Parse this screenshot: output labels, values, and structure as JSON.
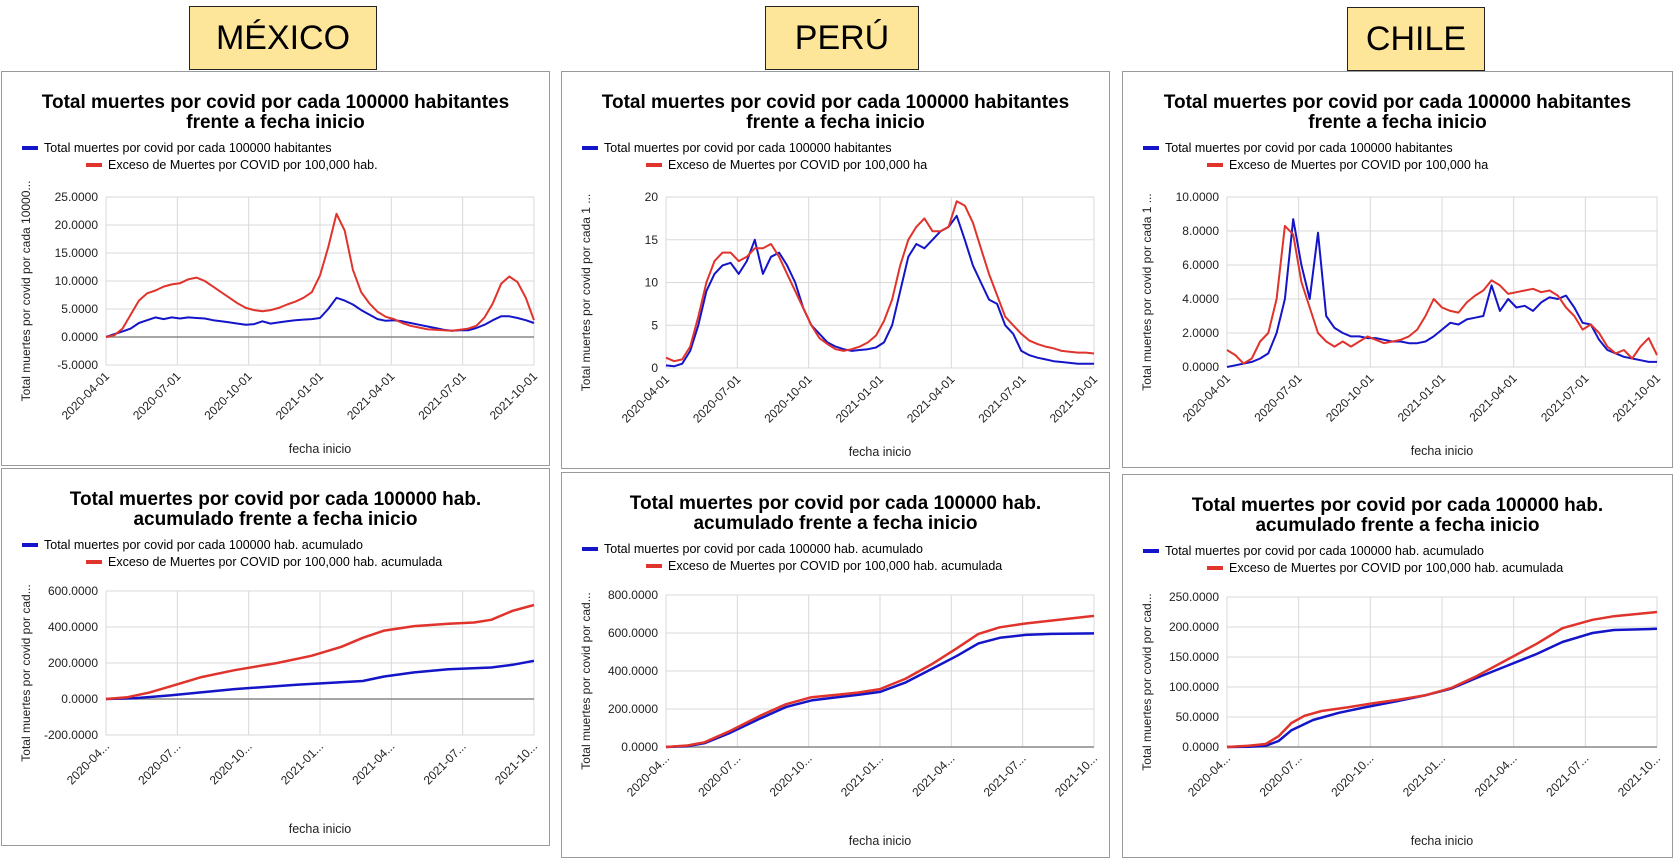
{
  "countries": [
    {
      "label": "MÉXICO",
      "key": "mexico"
    },
    {
      "label": "PERÚ",
      "key": "peru"
    },
    {
      "label": "CHILE",
      "key": "chile"
    }
  ],
  "colors": {
    "blue": "#1414c8",
    "red": "#e0332b",
    "grid": "#d9d9d9",
    "zero_line": "#888888"
  },
  "chart_data": [
    {
      "id": "mexico-daily",
      "type": "line",
      "title": [
        "Total muertes por covid por cada 100000 habitantes",
        "frente a fecha inicio"
      ],
      "xlabel": "fecha inicio",
      "ylabel": "Total muertes por covid por cada 10000...",
      "x_ticks": [
        "2020-04-01",
        "2020-07-01",
        "2020-10-01",
        "2021-01-01",
        "2021-04-01",
        "2021-07-01",
        "2021-10-01"
      ],
      "y_ticks": [
        "25.0000",
        "20.0000",
        "15.0000",
        "10.0000",
        "5.0000",
        "0.0000",
        "-5.0000"
      ],
      "ylim": [
        -5,
        25
      ],
      "zero_line": true,
      "series": [
        {
          "name": "Total muertes por covid por cada 100000 habitantes",
          "color": "blue",
          "values": [
            0,
            0.5,
            1,
            1.5,
            2.5,
            3,
            3.5,
            3.2,
            3.5,
            3.3,
            3.5,
            3.4,
            3.3,
            3,
            2.8,
            2.6,
            2.4,
            2.2,
            2.3,
            2.8,
            2.4,
            2.6,
            2.8,
            3,
            3.1,
            3.2,
            3.4,
            5,
            7,
            6.5,
            5.8,
            4.8,
            4,
            3.2,
            2.9,
            3,
            2.8,
            2.5,
            2.2,
            1.9,
            1.6,
            1.3,
            1.1,
            1.2,
            1.2,
            1.6,
            2.2,
            3,
            3.7,
            3.7,
            3.4,
            3,
            2.5
          ]
        },
        {
          "name": "Exceso de Muertes por COVID por 100,000 hab.",
          "color": "red",
          "values": [
            0,
            0.3,
            1.5,
            4,
            6.5,
            7.8,
            8.3,
            9,
            9.4,
            9.6,
            10.3,
            10.6,
            10,
            9,
            8,
            7,
            6,
            5.2,
            4.8,
            4.6,
            4.8,
            5.2,
            5.8,
            6.3,
            7,
            8,
            11,
            16,
            22,
            19,
            12,
            8,
            6,
            4.5,
            3.6,
            3.2,
            2.5,
            2,
            1.7,
            1.4,
            1.3,
            1.2,
            1.1,
            1.3,
            1.5,
            2,
            3.5,
            6,
            9.5,
            10.8,
            9.8,
            7,
            3
          ]
        }
      ]
    },
    {
      "id": "peru-daily",
      "type": "line",
      "title": [
        "Total muertes por covid por cada 100000 habitantes",
        "frente a fecha inicio"
      ],
      "xlabel": "fecha inicio",
      "ylabel": "Total muertes por covid por cada 1 ...",
      "x_ticks": [
        "2020-04-01",
        "2020-07-01",
        "2020-10-01",
        "2021-01-01",
        "2021-04-01",
        "2021-07-01",
        "2021-10-01"
      ],
      "y_ticks": [
        "20",
        "15",
        "10",
        "5",
        "0"
      ],
      "ylim": [
        0,
        20
      ],
      "zero_line": false,
      "series": [
        {
          "name": "Total muertes por covid por cada 100000 habitantes",
          "color": "blue",
          "values": [
            0.3,
            0.2,
            0.5,
            2,
            5,
            9,
            11,
            12,
            12.3,
            11,
            12.5,
            15,
            11,
            13,
            13.5,
            12,
            10,
            7,
            5,
            4,
            3,
            2.5,
            2.2,
            2,
            2.1,
            2.2,
            2.4,
            3,
            5,
            9,
            13,
            14.5,
            14,
            15,
            16,
            16.5,
            17.8,
            15,
            12,
            10,
            8,
            7.5,
            5,
            4,
            2,
            1.5,
            1.2,
            1,
            0.8,
            0.7,
            0.6,
            0.5,
            0.5,
            0.5
          ]
        },
        {
          "name": "Exceso de Muertes por COVID por 100,000 ha",
          "color": "red",
          "values": [
            1.2,
            0.8,
            1,
            2.5,
            6,
            10,
            12.5,
            13.5,
            13.5,
            12.5,
            13,
            14,
            14,
            14.5,
            13,
            11,
            9,
            7,
            5,
            3.5,
            2.8,
            2.2,
            2,
            2.2,
            2.5,
            3,
            3.8,
            5.5,
            8,
            12,
            15,
            16.5,
            17.5,
            16,
            16,
            16.5,
            19.5,
            19,
            17,
            14,
            11,
            8.5,
            6,
            5,
            4,
            3.2,
            2.8,
            2.5,
            2.3,
            2,
            1.9,
            1.8,
            1.8,
            1.7
          ]
        }
      ]
    },
    {
      "id": "chile-daily",
      "type": "line",
      "title": [
        "Total muertes por covid por cada 100000 habitantes",
        "frente a fecha inicio"
      ],
      "xlabel": "fecha inicio",
      "ylabel": "Total muertes por covid por cada 1 ...",
      "x_ticks": [
        "2020-04-01",
        "2020-07-01",
        "2020-10-01",
        "2021-01-01",
        "2021-04-01",
        "2021-07-01",
        "2021-10-01"
      ],
      "y_ticks": [
        "10.0000",
        "8.0000",
        "6.0000",
        "4.0000",
        "2.0000",
        "0.0000"
      ],
      "ylim": [
        0,
        10
      ],
      "zero_line": false,
      "series": [
        {
          "name": "Total muertes por covid por cada 100000 habitantes",
          "color": "blue",
          "values": [
            0,
            0.1,
            0.2,
            0.3,
            0.5,
            0.8,
            2,
            4,
            8.7,
            6,
            4,
            7.9,
            3,
            2.3,
            2,
            1.8,
            1.8,
            1.7,
            1.7,
            1.6,
            1.5,
            1.5,
            1.4,
            1.4,
            1.5,
            1.8,
            2.2,
            2.6,
            2.5,
            2.8,
            2.9,
            3,
            4.8,
            3.3,
            4,
            3.5,
            3.6,
            3.3,
            3.8,
            4.1,
            4,
            4.2,
            3.5,
            2.6,
            2.5,
            1.6,
            1,
            0.8,
            0.6,
            0.5,
            0.4,
            0.3,
            0.3
          ]
        },
        {
          "name": "Exceso de Muertes por COVID por 100,000 ha",
          "color": "red",
          "values": [
            1,
            0.7,
            0.2,
            0.5,
            1.5,
            2,
            4,
            8.3,
            7.8,
            5,
            3.5,
            2,
            1.5,
            1.2,
            1.5,
            1.2,
            1.5,
            1.8,
            1.6,
            1.4,
            1.5,
            1.6,
            1.8,
            2.2,
            3,
            4,
            3.5,
            3.3,
            3.2,
            3.8,
            4.2,
            4.5,
            5.1,
            4.8,
            4.3,
            4.4,
            4.5,
            4.6,
            4.4,
            4.5,
            4.2,
            3.5,
            3,
            2.2,
            2.5,
            2,
            1.2,
            0.8,
            1,
            0.5,
            1.2,
            1.7,
            0.7
          ]
        }
      ]
    },
    {
      "id": "mexico-cumulative",
      "type": "line",
      "title": [
        "Total muertes por covid por cada 100000 hab.",
        "acumulado frente a fecha inicio"
      ],
      "xlabel": "fecha inicio",
      "ylabel": "Total muertes por covid por cad...",
      "x_ticks": [
        "2020-04...",
        "2020-07...",
        "2020-10...",
        "2021-01...",
        "2021-04...",
        "2021-07...",
        "2021-10..."
      ],
      "y_ticks": [
        "600.0000",
        "400.0000",
        "200.0000",
        "0.0000",
        "-200.0000"
      ],
      "ylim": [
        -200,
        600
      ],
      "zero_line": true,
      "series": [
        {
          "name": "Total muertes por covid por cada 100000 hab. acumulado",
          "color": "blue",
          "x": [
            0,
            0.07,
            0.15,
            0.3,
            0.45,
            0.6,
            0.65,
            0.72,
            0.8,
            0.9,
            0.95,
            1
          ],
          "values": [
            0,
            5,
            20,
            55,
            80,
            100,
            125,
            148,
            165,
            175,
            190,
            212
          ]
        },
        {
          "name": "Exceso de Muertes por COVID por 100,000 hab. acumulada",
          "color": "red",
          "x": [
            0,
            0.05,
            0.1,
            0.15,
            0.22,
            0.3,
            0.4,
            0.48,
            0.55,
            0.6,
            0.65,
            0.72,
            0.8,
            0.86,
            0.9,
            0.95,
            1
          ],
          "values": [
            0,
            10,
            35,
            70,
            120,
            160,
            200,
            240,
            290,
            340,
            380,
            405,
            418,
            425,
            440,
            490,
            522
          ]
        }
      ]
    },
    {
      "id": "peru-cumulative",
      "type": "line",
      "title": [
        "Total muertes por covid por cada 100000 hab.",
        "acumulado frente a fecha inicio"
      ],
      "xlabel": "fecha inicio",
      "ylabel": "Total muertes por covid por cad...",
      "x_ticks": [
        "2020-04...",
        "2020-07...",
        "2020-10...",
        "2021-01...",
        "2021-04...",
        "2021-07...",
        "2021-10..."
      ],
      "y_ticks": [
        "800.0000",
        "600.0000",
        "400.0000",
        "200.0000",
        "0.0000"
      ],
      "ylim": [
        0,
        800
      ],
      "zero_line": true,
      "series": [
        {
          "name": "Total muertes por covid por cada 100000 hab. acumulado",
          "color": "blue",
          "x": [
            0,
            0.05,
            0.09,
            0.15,
            0.22,
            0.28,
            0.34,
            0.4,
            0.45,
            0.5,
            0.56,
            0.62,
            0.68,
            0.73,
            0.78,
            0.84,
            0.9,
            1
          ],
          "values": [
            0,
            5,
            20,
            75,
            150,
            210,
            245,
            262,
            275,
            290,
            340,
            410,
            480,
            545,
            575,
            590,
            595,
            598
          ]
        },
        {
          "name": "Exceso de Muertes por COVID por 100,000 hab. acumulada",
          "color": "red",
          "x": [
            0,
            0.05,
            0.09,
            0.15,
            0.22,
            0.28,
            0.34,
            0.4,
            0.45,
            0.5,
            0.56,
            0.62,
            0.68,
            0.73,
            0.78,
            0.84,
            0.9,
            1
          ],
          "values": [
            0,
            8,
            25,
            85,
            165,
            225,
            262,
            275,
            287,
            305,
            360,
            435,
            520,
            595,
            630,
            650,
            665,
            690
          ]
        }
      ]
    },
    {
      "id": "chile-cumulative",
      "type": "line",
      "title": [
        "Total muertes por covid por cada 100000 hab.",
        "acumulado frente a fecha inicio"
      ],
      "xlabel": "fecha inicio",
      "ylabel": "Total muertes por covid por cad...",
      "x_ticks": [
        "2020-04...",
        "2020-07...",
        "2020-10...",
        "2021-01...",
        "2021-04...",
        "2021-07...",
        "2021-10..."
      ],
      "y_ticks": [
        "250.0000",
        "200.0000",
        "150.0000",
        "100.0000",
        "50.0000",
        "0.0000"
      ],
      "ylim": [
        0,
        250
      ],
      "zero_line": true,
      "series": [
        {
          "name": "Total muertes por covid por cada 100000 hab. acumulado",
          "color": "blue",
          "x": [
            0,
            0.05,
            0.09,
            0.12,
            0.15,
            0.2,
            0.26,
            0.32,
            0.4,
            0.46,
            0.52,
            0.58,
            0.65,
            0.72,
            0.78,
            0.85,
            0.9,
            1
          ],
          "values": [
            0,
            0.5,
            2,
            10,
            28,
            45,
            57,
            66,
            77,
            86,
            97,
            115,
            135,
            155,
            175,
            190,
            195,
            197
          ]
        },
        {
          "name": "Exceso de Muertes por COVID por 100,000 hab. acumulada",
          "color": "red",
          "x": [
            0,
            0.05,
            0.09,
            0.12,
            0.15,
            0.18,
            0.22,
            0.28,
            0.34,
            0.4,
            0.46,
            0.52,
            0.58,
            0.65,
            0.72,
            0.78,
            0.85,
            0.9,
            1
          ],
          "values": [
            0,
            2,
            5,
            18,
            40,
            52,
            60,
            66,
            73,
            79,
            86,
            98,
            118,
            145,
            172,
            198,
            212,
            218,
            225
          ]
        }
      ]
    }
  ]
}
